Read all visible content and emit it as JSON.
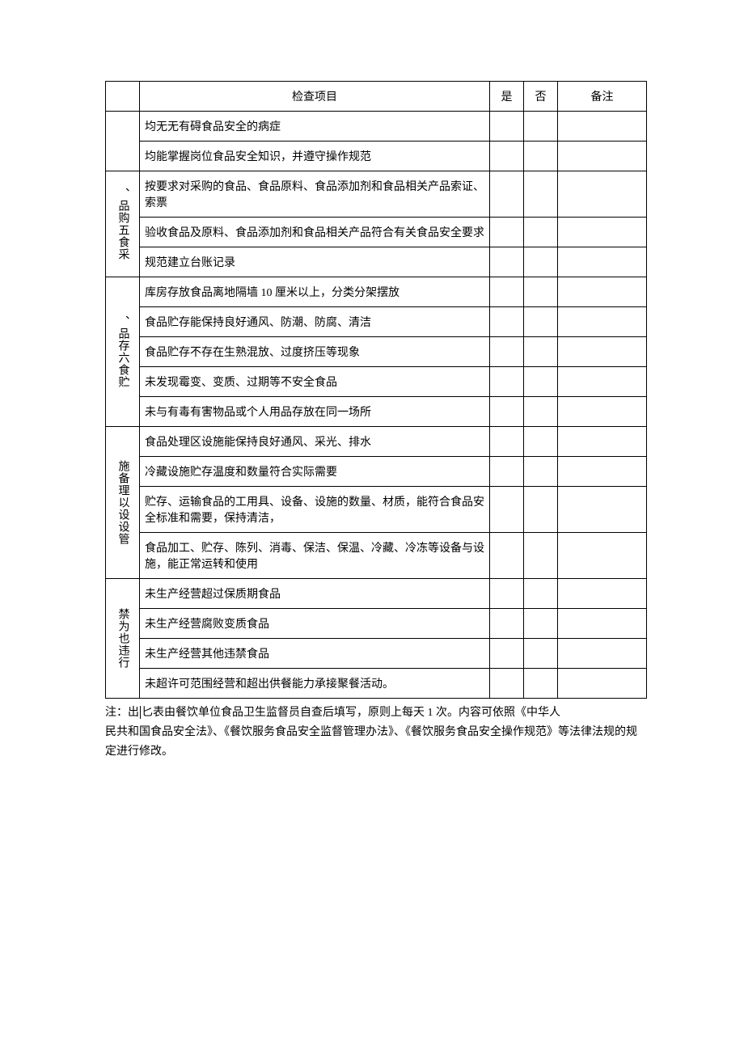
{
  "headers": {
    "item": "检查项目",
    "yes": "是",
    "no": "否",
    "note": "备注"
  },
  "sections": [
    {
      "category": "",
      "rows": [
        "均无无有碍食品安全的病症",
        "均能掌握岗位食品安全知识，并遵守操作规范"
      ]
    },
    {
      "category": "、品购五食采",
      "rows": [
        "按要求对采购的食品、食品原料、食品添加剂和食品相关产品索证、索票",
        "验收食品及原料、食品添加剂和食品相关产品符合有关食品安全要求",
        "规范建立台账记录"
      ]
    },
    {
      "category": "、品存六食贮",
      "rows": [
        "库房存放食品离地隔墙 10 厘米以上，分类分架摆放",
        "食品贮存能保持良好通风、防潮、防腐、清洁",
        "食品贮存不存在生熟混放、过度挤压等现象",
        "未发现霉变、变质、过期等不安全食品",
        "未与有毒有害物品或个人用品存放在同一场所"
      ]
    },
    {
      "category": "施备理以设设管",
      "rows": [
        "食品处理区设施能保持良好通风、采光、排水",
        "冷藏设施贮存温度和数量符合实际需要",
        "贮存、运输食品的工用具、设备、设施的数量、材质，能符合食品安全标准和需要，保持清洁，",
        "食品加工、贮存、陈列、消毒、保洁、保温、冷藏、冷冻等设备与设施，能正常运转和使用"
      ]
    },
    {
      "category": "禁为也违行",
      "rows": [
        "未生产经营超过保质期食品",
        "未生产经营腐败变质食品",
        "未生产经营其他违禁食品",
        "未超许可范围经营和超出供餐能力承接聚餐活动。"
      ]
    }
  ],
  "footnote": {
    "prefix": "注：出",
    "after_divider": "匕表由餐饮单位食品卫生监督员自查后填写，原则上每天 1 次。内容可依照《中华人",
    "line2": "民共和国食品安全法》、《餐饮服务食品安全监督管理办法》、《餐饮服务食品安全操作规范》等法律法规的规定进行修改。"
  }
}
